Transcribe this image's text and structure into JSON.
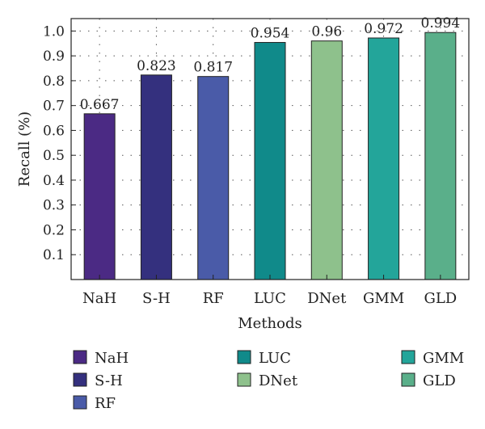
{
  "chart_data": {
    "type": "bar",
    "categories": [
      "NaH",
      "S-H",
      "RF",
      "LUC",
      "DNet",
      "GMM",
      "GLD"
    ],
    "values": [
      0.667,
      0.823,
      0.817,
      0.954,
      0.96,
      0.972,
      0.994
    ],
    "value_labels": [
      "0.667",
      "0.823",
      "0.817",
      "0.954",
      "0.96",
      "0.972",
      "0.994"
    ],
    "colors": [
      "#4b2a84",
      "#34307e",
      "#4a5ba8",
      "#108a8a",
      "#8ec18c",
      "#23a59a",
      "#5aaf8a"
    ],
    "xlabel": "Methods",
    "ylabel": "Recall (%)",
    "ylim": [
      0,
      1.05
    ],
    "yticks": [
      "0.1",
      "0.2",
      "0.3",
      "0.4",
      "0.5",
      "0.6",
      "0.7",
      "0.8",
      "0.9",
      "1.0"
    ],
    "grid": true,
    "legend": {
      "placement": "bottom",
      "entries": [
        "NaH",
        "S-H",
        "RF",
        "LUC",
        "DNet",
        "GMM",
        "GLD"
      ]
    }
  }
}
